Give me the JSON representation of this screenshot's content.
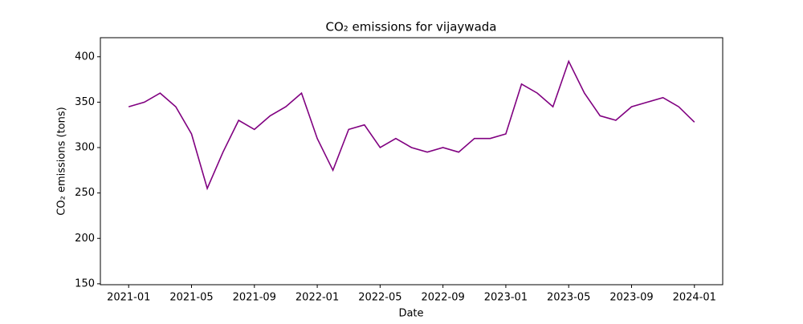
{
  "chart_data": {
    "type": "line",
    "title": "CO₂ emissions for vijaywada",
    "x_label": "Date",
    "y_label": "CO₂ emissions (tons)",
    "x": [
      "2021-01",
      "2021-02",
      "2021-03",
      "2021-04",
      "2021-05",
      "2021-06",
      "2021-07",
      "2021-08",
      "2021-09",
      "2021-10",
      "2021-11",
      "2021-12",
      "2022-01",
      "2022-02",
      "2022-03",
      "2022-04",
      "2022-05",
      "2022-06",
      "2022-07",
      "2022-08",
      "2022-09",
      "2022-10",
      "2022-11",
      "2022-12",
      "2023-01",
      "2023-02",
      "2023-03",
      "2023-04",
      "2023-05",
      "2023-06",
      "2023-07",
      "2023-08",
      "2023-09",
      "2023-10",
      "2023-11",
      "2023-12",
      "2024-01"
    ],
    "series": [
      {
        "name": "vijaywada",
        "color": "#800080",
        "values": [
          345,
          350,
          360,
          345,
          315,
          255,
          295,
          330,
          320,
          335,
          345,
          360,
          310,
          275,
          320,
          325,
          300,
          310,
          300,
          295,
          300,
          295,
          310,
          310,
          315,
          370,
          360,
          345,
          395,
          360,
          335,
          330,
          345,
          350,
          355,
          345,
          328
        ]
      }
    ],
    "xticks": [
      "2021-01",
      "2021-05",
      "2021-09",
      "2022-01",
      "2022-05",
      "2022-09",
      "2023-01",
      "2023-05",
      "2023-09",
      "2024-01"
    ],
    "ylim": [
      149,
      421
    ],
    "yticks": [
      150,
      200,
      250,
      300,
      350,
      400
    ]
  }
}
